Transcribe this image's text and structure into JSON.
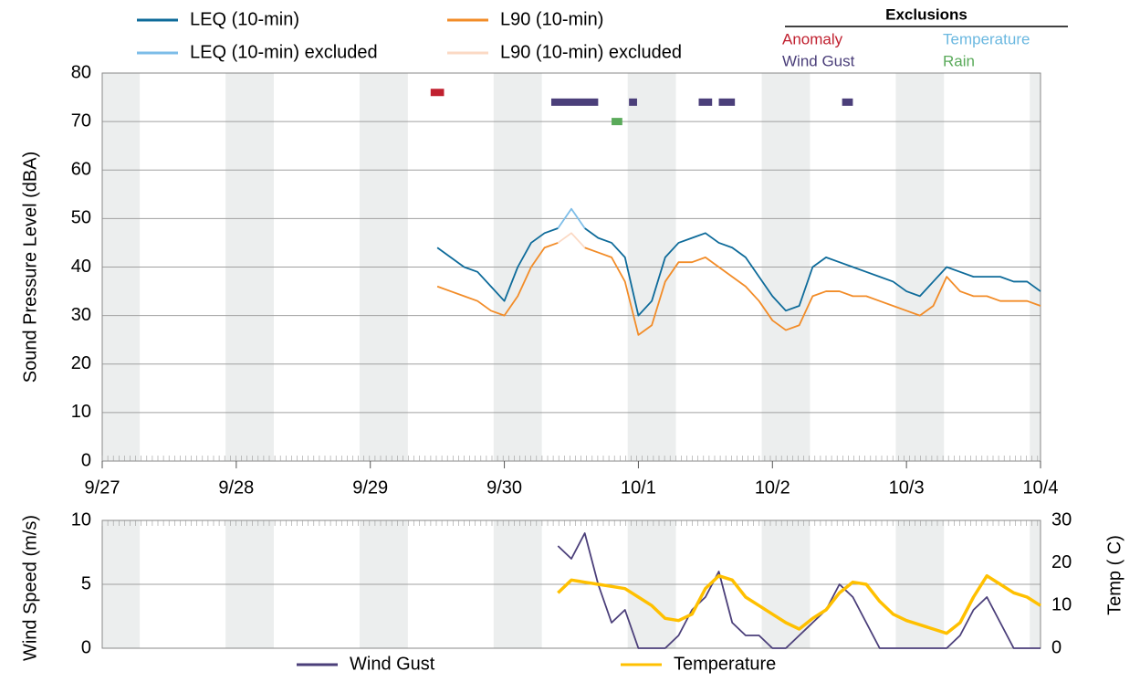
{
  "chart_data": [
    {
      "type": "line",
      "ylabel": "Sound Pressure Level (dBA)",
      "xlim": [
        0,
        7
      ],
      "xticks": [
        {
          "value": 0,
          "label": "9/27"
        },
        {
          "value": 1,
          "label": "9/28"
        },
        {
          "value": 2,
          "label": "9/29"
        },
        {
          "value": 3,
          "label": "9/30"
        },
        {
          "value": 4,
          "label": "10/1"
        },
        {
          "value": 5,
          "label": "10/2"
        },
        {
          "value": 6,
          "label": "10/3"
        },
        {
          "value": 7,
          "label": "10/4"
        }
      ],
      "ylim": [
        0,
        80
      ],
      "yticks": [
        0,
        10,
        20,
        30,
        40,
        50,
        60,
        70,
        80
      ],
      "grid": true,
      "shading": [
        [
          0,
          0.28
        ],
        [
          0.92,
          1.28
        ],
        [
          1.92,
          2.28
        ],
        [
          2.92,
          3.28
        ],
        [
          3.92,
          4.28
        ],
        [
          4.92,
          5.28
        ],
        [
          5.92,
          6.28
        ],
        [
          6.92,
          7
        ]
      ],
      "x": [
        2.5,
        2.6,
        2.7,
        2.8,
        2.9,
        3.0,
        3.1,
        3.2,
        3.3,
        3.4,
        3.5,
        3.6,
        3.7,
        3.8,
        3.9,
        4.0,
        4.1,
        4.2,
        4.3,
        4.4,
        4.5,
        4.6,
        4.7,
        4.8,
        4.9,
        5.0,
        5.1,
        5.2,
        5.3,
        5.4,
        5.5,
        5.6,
        5.7,
        5.8,
        5.9,
        6.0,
        6.1,
        6.2,
        6.3,
        6.4,
        6.5,
        6.6,
        6.7,
        6.8,
        6.9,
        7.0
      ],
      "series": [
        {
          "name": "LEQ (10-min)",
          "color": "#0e6b9a",
          "values": [
            44,
            42,
            40,
            39,
            36,
            33,
            40,
            45,
            47,
            48,
            null,
            48,
            46,
            45,
            42,
            30,
            33,
            42,
            45,
            46,
            47,
            45,
            44,
            42,
            38,
            34,
            31,
            32,
            40,
            42,
            41,
            40,
            39,
            38,
            37,
            35,
            34,
            37,
            40,
            39,
            38,
            38,
            38,
            37,
            37,
            35
          ]
        },
        {
          "name": "LEQ (10-min) excluded",
          "color": "#7dbde8",
          "values": [
            null,
            null,
            null,
            null,
            null,
            null,
            null,
            null,
            null,
            48,
            52,
            48,
            null,
            null,
            null,
            null,
            null,
            null,
            null,
            null,
            null,
            null,
            null,
            null,
            null,
            null,
            null,
            null,
            null,
            null,
            null,
            null,
            null,
            null,
            null,
            null,
            null,
            null,
            null,
            null,
            null,
            null,
            null,
            null,
            null,
            null
          ]
        },
        {
          "name": "L90 (10-min)",
          "color": "#f28c28",
          "values": [
            36,
            35,
            34,
            33,
            31,
            30,
            34,
            40,
            44,
            45,
            null,
            44,
            43,
            42,
            37,
            26,
            28,
            37,
            41,
            41,
            42,
            40,
            38,
            36,
            33,
            29,
            27,
            28,
            34,
            35,
            35,
            34,
            34,
            33,
            32,
            31,
            30,
            32,
            38,
            35,
            34,
            34,
            33,
            33,
            33,
            32
          ]
        },
        {
          "name": "L90 (10-min) excluded",
          "color": "#fbd9c4",
          "values": [
            null,
            null,
            null,
            null,
            null,
            null,
            null,
            null,
            null,
            45,
            47,
            44,
            null,
            null,
            null,
            null,
            null,
            null,
            null,
            null,
            null,
            null,
            null,
            null,
            null,
            null,
            null,
            null,
            null,
            null,
            null,
            null,
            null,
            null,
            null,
            null,
            null,
            null,
            null,
            null,
            null,
            null,
            null,
            null,
            null,
            null
          ]
        }
      ],
      "exclusions": {
        "title": "Exclusions",
        "items": [
          {
            "name": "Anomaly",
            "color": "#c0202f",
            "y": 76,
            "intervals": [
              [
                2.45,
                2.55
              ]
            ]
          },
          {
            "name": "Temperature",
            "color": "#6bb8e0",
            "y": 72,
            "intervals": []
          },
          {
            "name": "Wind Gust",
            "color": "#4b3f7a",
            "y": 74,
            "intervals": [
              [
                3.35,
                3.7
              ],
              [
                3.93,
                3.99
              ],
              [
                4.45,
                4.55
              ],
              [
                4.6,
                4.72
              ],
              [
                5.52,
                5.6
              ]
            ]
          },
          {
            "name": "Rain",
            "color": "#5aaa5a",
            "y": 70,
            "intervals": [
              [
                3.8,
                3.88
              ]
            ]
          }
        ]
      }
    },
    {
      "type": "line",
      "ylabel": "Wind Speed (m/s)",
      "y2label": "Temp ( C)",
      "xlim": [
        0,
        7
      ],
      "ylim": [
        0,
        10
      ],
      "yticks": [
        0,
        5,
        10
      ],
      "y2lim": [
        0,
        30
      ],
      "y2ticks": [
        0,
        10,
        20,
        30
      ],
      "grid": true,
      "shading": [
        [
          0,
          0.28
        ],
        [
          0.92,
          1.28
        ],
        [
          1.92,
          2.28
        ],
        [
          2.92,
          3.28
        ],
        [
          3.92,
          4.28
        ],
        [
          4.92,
          5.28
        ],
        [
          5.92,
          6.28
        ],
        [
          6.92,
          7
        ]
      ],
      "x": [
        3.4,
        3.5,
        3.6,
        3.7,
        3.8,
        3.9,
        4.0,
        4.1,
        4.2,
        4.3,
        4.4,
        4.5,
        4.6,
        4.7,
        4.8,
        4.9,
        5.0,
        5.1,
        5.2,
        5.3,
        5.4,
        5.5,
        5.6,
        5.7,
        5.8,
        5.9,
        6.0,
        6.1,
        6.2,
        6.3,
        6.4,
        6.5,
        6.6,
        6.7,
        6.8,
        6.9,
        7.0
      ],
      "series": [
        {
          "name": "Wind Gust",
          "color": "#4b3f7a",
          "values": [
            8,
            7,
            9,
            5,
            2,
            3,
            0,
            0,
            0,
            1,
            3,
            4,
            6,
            2,
            1,
            1,
            0,
            0,
            1,
            2,
            3,
            5,
            4,
            2,
            0,
            0,
            0,
            0,
            0,
            0,
            1,
            3,
            4,
            2,
            0,
            0,
            0
          ]
        },
        {
          "name": "Temperature",
          "color": "#ffc000",
          "axis": "y2",
          "values": [
            13,
            16,
            15.5,
            15,
            14.5,
            14,
            12,
            10,
            7,
            6.5,
            8,
            14,
            17,
            16,
            12,
            10,
            8,
            6,
            4.5,
            7,
            9,
            13,
            15.5,
            15,
            11,
            8,
            6.5,
            5.5,
            4.5,
            3.5,
            6,
            12,
            17,
            15,
            13,
            12,
            10
          ]
        }
      ]
    }
  ]
}
